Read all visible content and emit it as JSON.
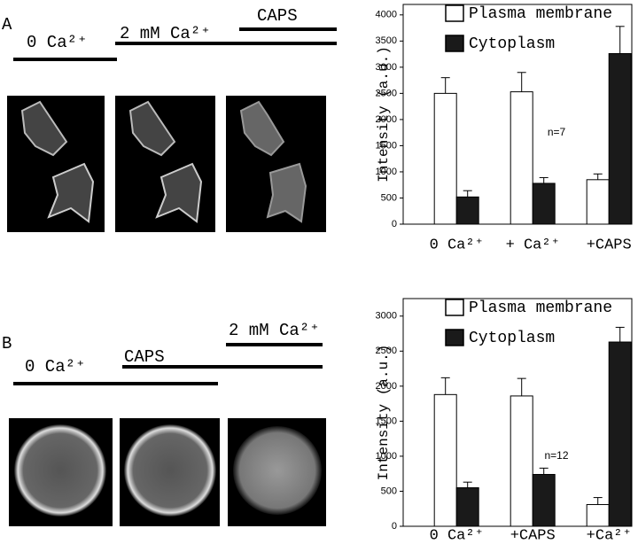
{
  "panels": [
    {
      "label": "A",
      "timeline": [
        "0 Ca²⁺",
        "2 mM Ca²⁺",
        "CAPS"
      ]
    },
    {
      "label": "B",
      "timeline": [
        "0 Ca²⁺",
        "CAPS",
        "2 mM Ca²⁺"
      ]
    }
  ],
  "chart_data": [
    {
      "type": "bar",
      "y_label": "Intensity (a.u.)",
      "note": "n=7",
      "categories": [
        "0 Ca²⁺",
        "+ Ca²⁺",
        "+CAPS"
      ],
      "series": [
        {
          "name": "Plasma membrane",
          "color": "#ffffff",
          "values": [
            2500,
            2530,
            850
          ],
          "errors": [
            300,
            370,
            110
          ]
        },
        {
          "name": "Cytoplasm",
          "color": "#1a1a1a",
          "values": [
            520,
            780,
            3260
          ],
          "errors": [
            120,
            110,
            520
          ]
        }
      ],
      "ylim": [
        0,
        4200
      ],
      "yticks": [
        0,
        500,
        1000,
        1500,
        2000,
        2500,
        3000,
        3500,
        4000
      ]
    },
    {
      "type": "bar",
      "y_label": "Intensity (a.u.)",
      "note": "n=12",
      "categories": [
        "0 Ca²⁺",
        "+CAPS",
        "+Ca²⁺"
      ],
      "series": [
        {
          "name": "Plasma membrane",
          "color": "#ffffff",
          "values": [
            1880,
            1860,
            310
          ],
          "errors": [
            240,
            250,
            100
          ]
        },
        {
          "name": "Cytoplasm",
          "color": "#1a1a1a",
          "values": [
            550,
            740,
            2630
          ],
          "errors": [
            80,
            90,
            210
          ]
        }
      ],
      "ylim": [
        0,
        3250
      ],
      "yticks": [
        0,
        500,
        1000,
        1500,
        2000,
        2500,
        3000
      ]
    }
  ]
}
